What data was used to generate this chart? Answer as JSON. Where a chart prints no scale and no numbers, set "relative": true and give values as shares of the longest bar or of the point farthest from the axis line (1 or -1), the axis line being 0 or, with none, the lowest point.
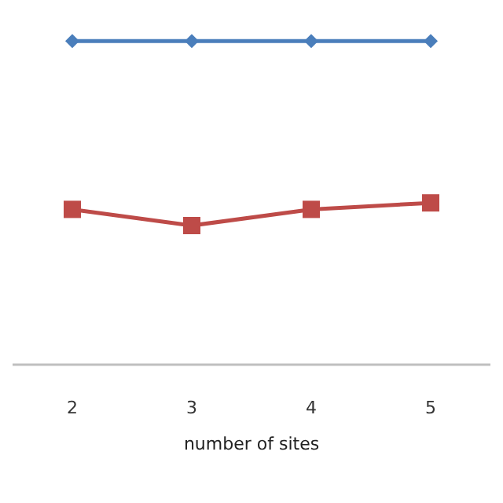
{
  "chart_data": {
    "type": "line",
    "xlabel": "number of sites",
    "categories": [
      "2",
      "3",
      "4",
      "5"
    ],
    "relative": true,
    "grid": false,
    "line_style": "solid",
    "series": [
      {
        "color": "#4a7ebb",
        "marker": "diamond",
        "values": [
          1,
          1,
          1,
          1
        ]
      },
      {
        "color": "#be4b48",
        "marker": "square",
        "values": [
          0.48,
          0.43,
          0.48,
          0.5
        ]
      }
    ]
  }
}
